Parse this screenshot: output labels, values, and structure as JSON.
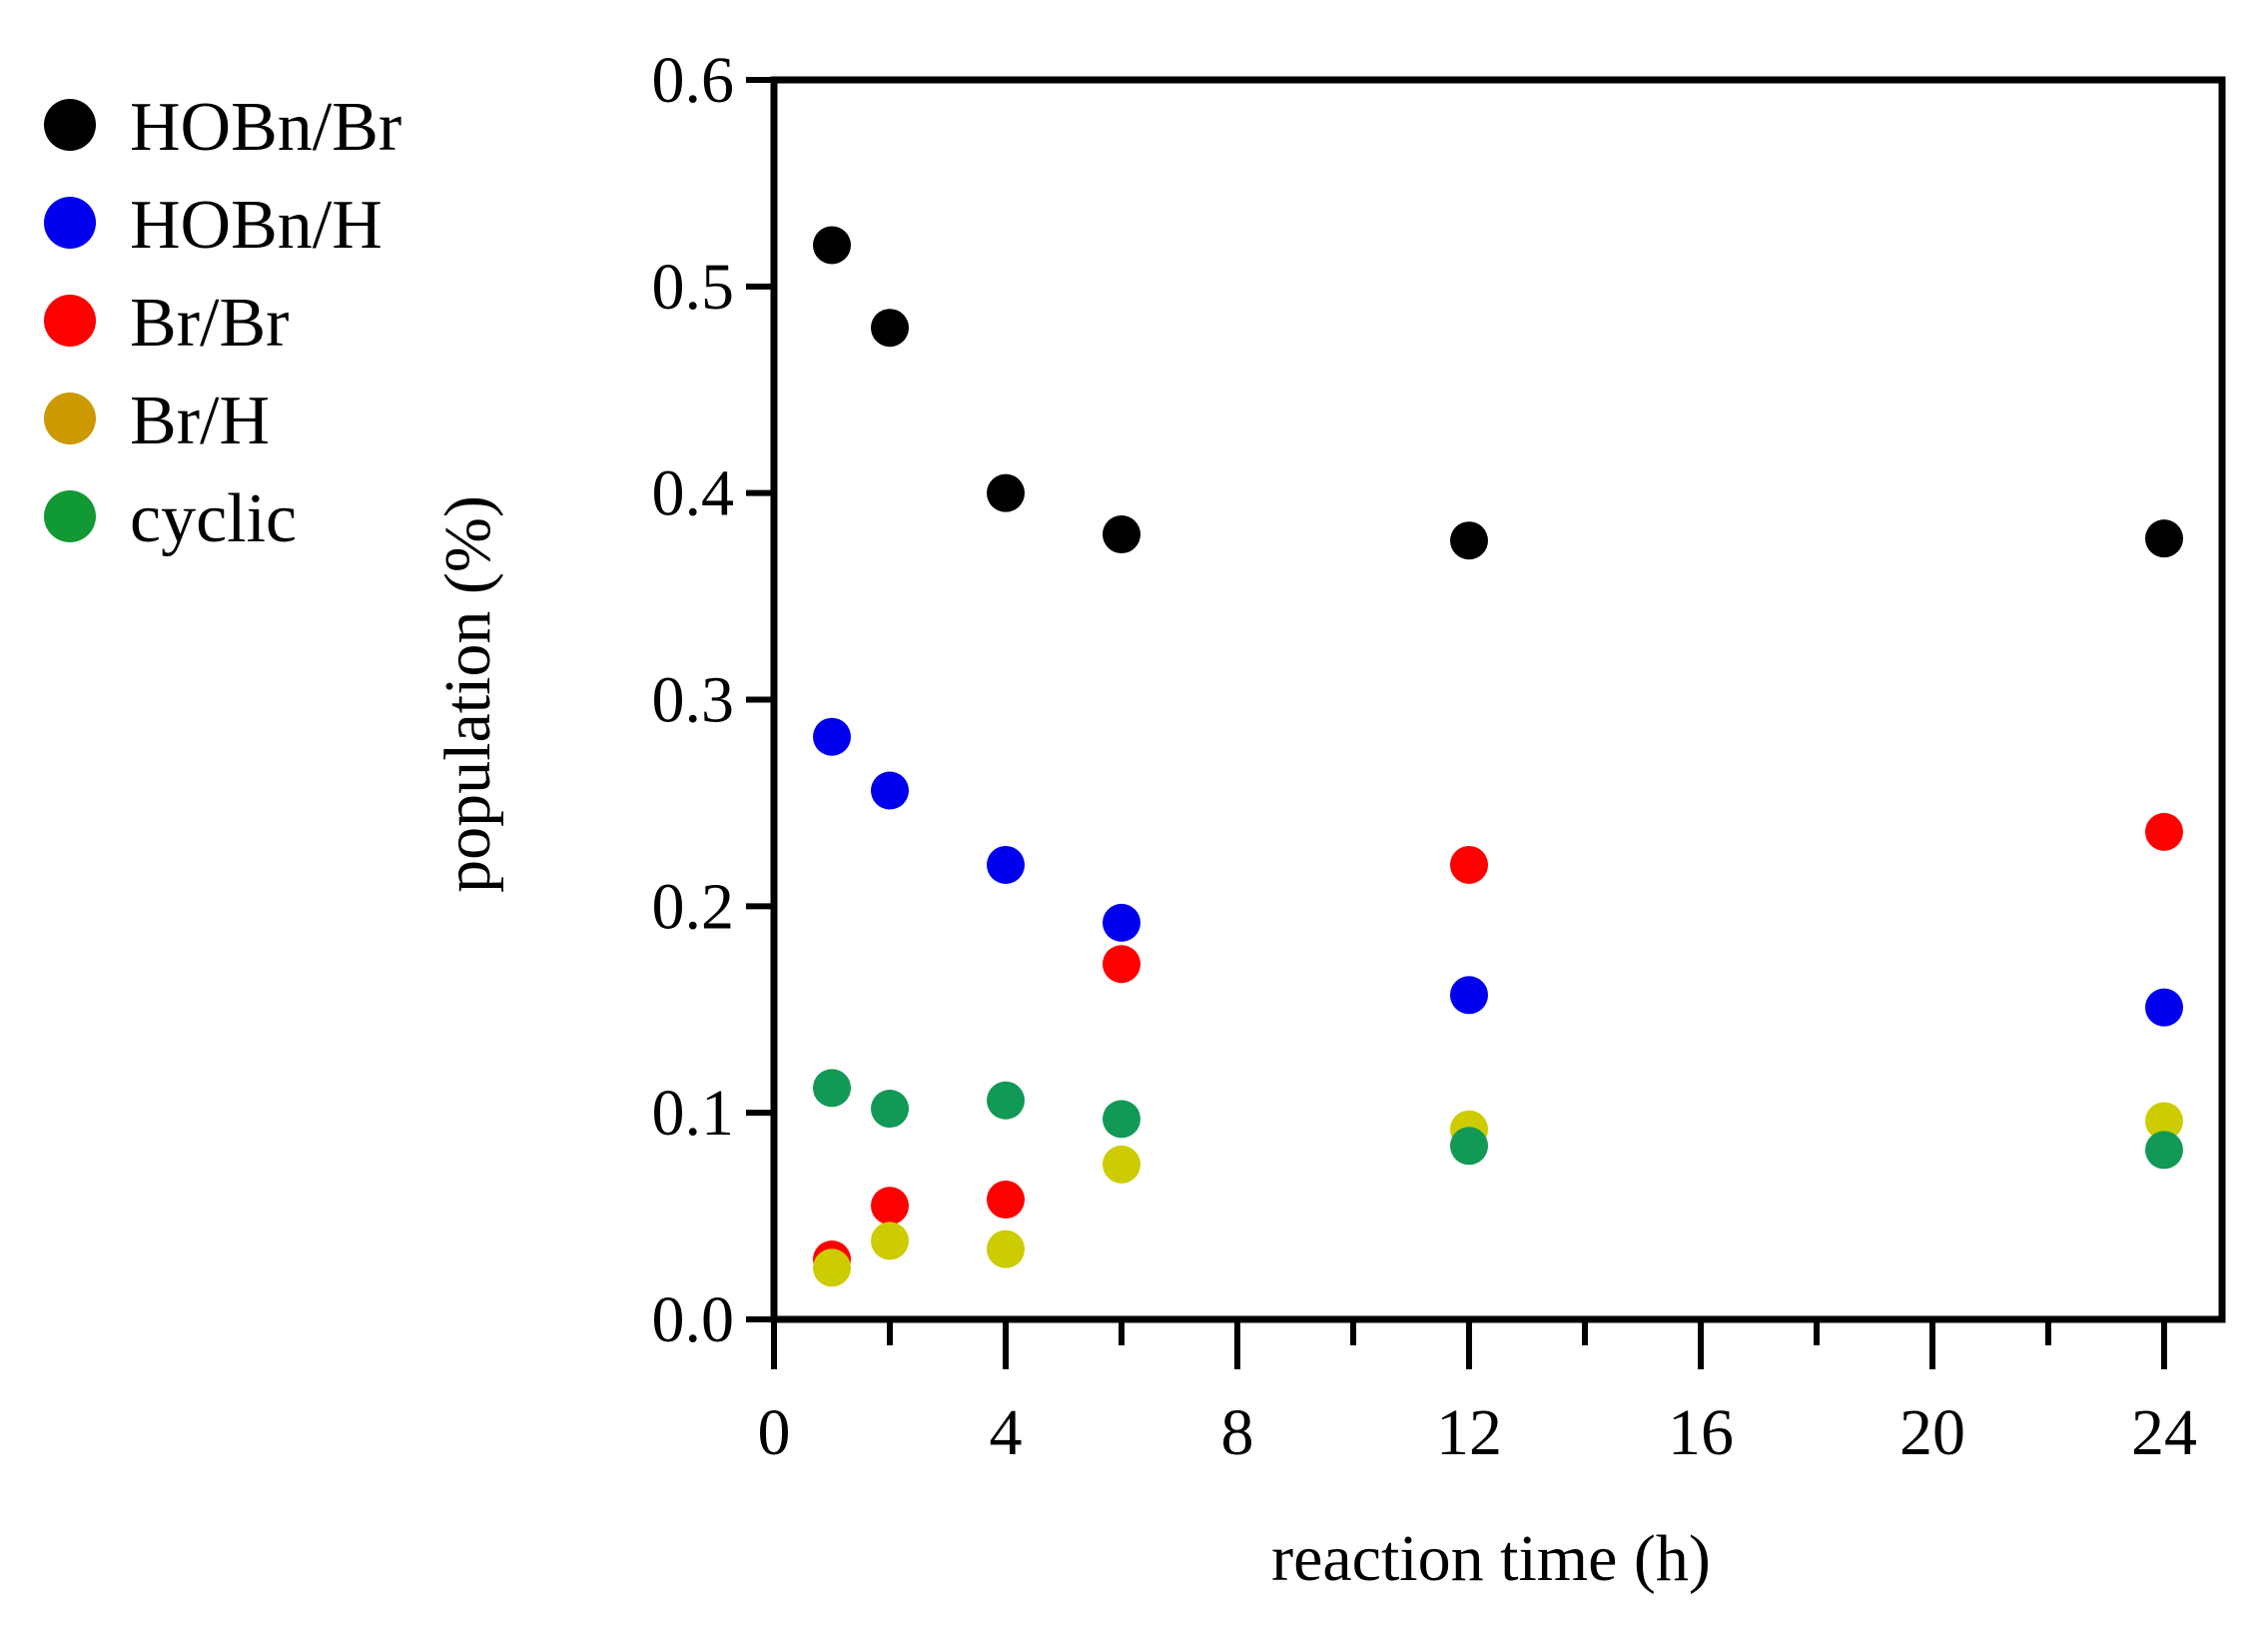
{
  "chart_data": {
    "type": "scatter",
    "title": "",
    "xlabel": "reaction time (h)",
    "ylabel": "population (%)",
    "xlim": [
      0,
      25
    ],
    "ylim": [
      0,
      0.6
    ],
    "xticks": [
      0,
      4,
      8,
      12,
      16,
      20,
      24
    ],
    "xtick_labels": [
      "0",
      "4",
      "8",
      "12",
      "16",
      "20",
      "24"
    ],
    "x_minor_ticks": [
      2,
      6,
      10,
      14,
      18,
      22
    ],
    "yticks": [
      0,
      0.1,
      0.2,
      0.3,
      0.4,
      0.5,
      0.6
    ],
    "ytick_labels": [
      "0.0",
      "0.1",
      "0.2",
      "0.3",
      "0.4",
      "0.5",
      "0.6"
    ],
    "grid": false,
    "legend_position": "left",
    "x": [
      1,
      2,
      4,
      6,
      12,
      24
    ],
    "series": [
      {
        "name": "HOBn/Br",
        "legend_color": "#000000",
        "color": "#000000",
        "values": [
          0.52,
          0.48,
          0.4,
          0.38,
          0.377,
          0.378
        ]
      },
      {
        "name": "HOBn/H",
        "legend_color": "#0000ee",
        "color": "#0000ee",
        "values": [
          0.282,
          0.256,
          0.22,
          0.192,
          0.157,
          0.151
        ]
      },
      {
        "name": "Br/Br",
        "legend_color": "#ff0000",
        "color": "#ff0000",
        "values": [
          0.029,
          0.055,
          0.058,
          0.172,
          0.22,
          0.236
        ]
      },
      {
        "name": "Br/H",
        "legend_color": "#cc9900",
        "color": "#cccc00",
        "values": [
          0.025,
          0.038,
          0.034,
          0.075,
          0.092,
          0.096
        ]
      },
      {
        "name": "cyclic",
        "legend_color": "#119933",
        "color": "#119955",
        "values": [
          0.112,
          0.102,
          0.106,
          0.097,
          0.084,
          0.082
        ]
      }
    ]
  }
}
